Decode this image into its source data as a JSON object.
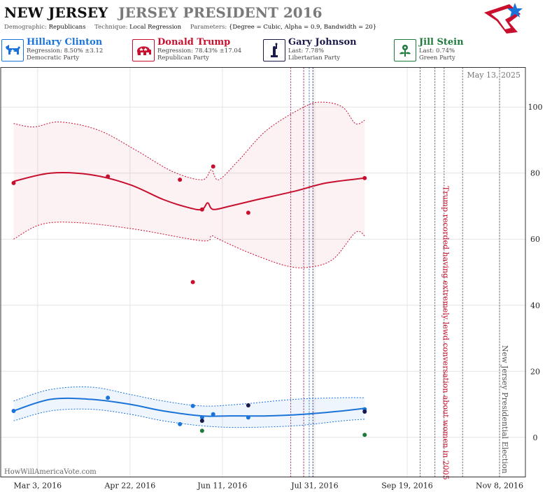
{
  "header": {
    "state": "NEW JERSEY",
    "race": "JERSEY PRESIDENT 2016"
  },
  "params": {
    "demographic_label": "Demographic:",
    "demographic": "Republicans",
    "technique_label": "Technique:",
    "technique": "Local Regression",
    "parameters_label": "Parameters:",
    "parameters": "{Degree = Cubic, Alpha = 0.9, Bandwidth = 20}"
  },
  "candidates": [
    {
      "name": "Hillary Clinton",
      "stat": "Regression: 8.50% ±3.12",
      "party": "Democratic Party",
      "color": "#1a73d9",
      "icon": "donkey-icon"
    },
    {
      "name": "Donald Trump",
      "stat": "Regression: 78.43% ±17.04",
      "party": "Republican Party",
      "color": "#c8102e",
      "icon": "elephant-icon"
    },
    {
      "name": "Gary Johnson",
      "stat": "Last: 7.78%",
      "party": "Libertarian Party",
      "color": "#1a1a4a",
      "icon": "liberty-icon"
    },
    {
      "name": "Jill Stein",
      "stat": "Last: 0.74%",
      "party": "Green Party",
      "color": "#1e7a3c",
      "icon": "flower-icon"
    }
  ],
  "date_stamp": "May 13, 2025",
  "watermark": "HowWillAmericaVote.com",
  "chart_data": {
    "type": "scatter",
    "x_ticks": [
      "Mar 3, 2016",
      "Apr 22, 2016",
      "Jun 11, 2016",
      "Jul 31, 2016",
      "Sep 19, 2016",
      "Nov 8, 2016"
    ],
    "x_range": [
      "2016-02-12",
      "2016-11-22"
    ],
    "y_ticks": [
      0,
      20,
      40,
      60,
      80,
      100
    ],
    "ylim": [
      -12,
      112
    ],
    "grid": true,
    "annotations": [
      {
        "text": "Trump recorded having extremely lewd conversation about women in 2005",
        "date": "2016-10-07",
        "color": "#c8102e"
      },
      {
        "text": "New Jersey Presidential Election",
        "date": "2016-11-08",
        "color": "#555555"
      }
    ],
    "event_lines": [
      {
        "date": "2016-07-18",
        "color": "#a0206a"
      },
      {
        "date": "2016-07-25",
        "color": "#8a1a5a"
      },
      {
        "date": "2016-07-28",
        "color": "#1a73d9"
      },
      {
        "date": "2016-07-30",
        "color": "#1a1a4a"
      },
      {
        "date": "2016-09-26",
        "color": "#555555"
      },
      {
        "date": "2016-10-04",
        "color": "#555555"
      },
      {
        "date": "2016-10-09",
        "color": "#555555"
      },
      {
        "date": "2016-10-19",
        "color": "#555555"
      },
      {
        "date": "2016-11-08",
        "color": "#555555"
      }
    ],
    "series": [
      {
        "name": "Donald Trump",
        "color": "#c8102e",
        "points": [
          {
            "date": "2016-02-19",
            "value": 77
          },
          {
            "date": "2016-04-10",
            "value": 79
          },
          {
            "date": "2016-05-19",
            "value": 78
          },
          {
            "date": "2016-05-26",
            "value": 47
          },
          {
            "date": "2016-05-31",
            "value": 69
          },
          {
            "date": "2016-06-06",
            "value": 82
          },
          {
            "date": "2016-06-25",
            "value": 68
          },
          {
            "date": "2016-08-27",
            "value": 78.5
          }
        ],
        "trend": [
          {
            "date": "2016-02-19",
            "value": 77.5
          },
          {
            "date": "2016-03-10",
            "value": 80
          },
          {
            "date": "2016-04-01",
            "value": 79.5
          },
          {
            "date": "2016-04-22",
            "value": 76.5
          },
          {
            "date": "2016-05-10",
            "value": 72
          },
          {
            "date": "2016-05-24",
            "value": 69.5
          },
          {
            "date": "2016-05-31",
            "value": 69
          },
          {
            "date": "2016-06-03",
            "value": 71
          },
          {
            "date": "2016-06-06",
            "value": 69
          },
          {
            "date": "2016-06-15",
            "value": 70
          },
          {
            "date": "2016-06-30",
            "value": 72
          },
          {
            "date": "2016-07-20",
            "value": 74.5
          },
          {
            "date": "2016-08-06",
            "value": 77
          },
          {
            "date": "2016-08-27",
            "value": 78.5
          }
        ],
        "upper": [
          {
            "date": "2016-02-19",
            "value": 95
          },
          {
            "date": "2016-03-01",
            "value": 94
          },
          {
            "date": "2016-03-15",
            "value": 95.5
          },
          {
            "date": "2016-04-05",
            "value": 93
          },
          {
            "date": "2016-04-25",
            "value": 87
          },
          {
            "date": "2016-05-15",
            "value": 80.5
          },
          {
            "date": "2016-05-31",
            "value": 78
          },
          {
            "date": "2016-06-05",
            "value": 81
          },
          {
            "date": "2016-06-09",
            "value": 78
          },
          {
            "date": "2016-06-20",
            "value": 84
          },
          {
            "date": "2016-07-05",
            "value": 93
          },
          {
            "date": "2016-07-25",
            "value": 100
          },
          {
            "date": "2016-08-04",
            "value": 101.5
          },
          {
            "date": "2016-08-15",
            "value": 100
          },
          {
            "date": "2016-08-22",
            "value": 95
          },
          {
            "date": "2016-08-27",
            "value": 96
          }
        ],
        "lower": [
          {
            "date": "2016-02-19",
            "value": 60
          },
          {
            "date": "2016-03-05",
            "value": 64.5
          },
          {
            "date": "2016-03-25",
            "value": 65
          },
          {
            "date": "2016-04-25",
            "value": 63
          },
          {
            "date": "2016-05-31",
            "value": 59.5
          },
          {
            "date": "2016-06-05",
            "value": 61
          },
          {
            "date": "2016-06-09",
            "value": 60
          },
          {
            "date": "2016-06-25",
            "value": 56
          },
          {
            "date": "2016-07-15",
            "value": 52
          },
          {
            "date": "2016-07-28",
            "value": 51.5
          },
          {
            "date": "2016-08-10",
            "value": 54
          },
          {
            "date": "2016-08-22",
            "value": 62
          },
          {
            "date": "2016-08-27",
            "value": 61
          }
        ]
      },
      {
        "name": "Hillary Clinton",
        "color": "#1a73d9",
        "points": [
          {
            "date": "2016-02-19",
            "value": 8
          },
          {
            "date": "2016-04-10",
            "value": 12
          },
          {
            "date": "2016-05-19",
            "value": 4
          },
          {
            "date": "2016-05-26",
            "value": 9.5
          },
          {
            "date": "2016-05-31",
            "value": 6
          },
          {
            "date": "2016-06-06",
            "value": 7
          },
          {
            "date": "2016-06-25",
            "value": 6
          },
          {
            "date": "2016-08-27",
            "value": 8.5
          }
        ],
        "trend": [
          {
            "date": "2016-02-19",
            "value": 8
          },
          {
            "date": "2016-03-10",
            "value": 11.5
          },
          {
            "date": "2016-04-01",
            "value": 11.5
          },
          {
            "date": "2016-04-22",
            "value": 10
          },
          {
            "date": "2016-05-10",
            "value": 8
          },
          {
            "date": "2016-05-31",
            "value": 6.5
          },
          {
            "date": "2016-06-15",
            "value": 6.5
          },
          {
            "date": "2016-07-05",
            "value": 6.5
          },
          {
            "date": "2016-07-25",
            "value": 7
          },
          {
            "date": "2016-08-15",
            "value": 8
          },
          {
            "date": "2016-08-27",
            "value": 8.8
          }
        ],
        "upper": [
          {
            "date": "2016-02-19",
            "value": 11
          },
          {
            "date": "2016-03-10",
            "value": 14.5
          },
          {
            "date": "2016-04-01",
            "value": 15.2
          },
          {
            "date": "2016-04-22",
            "value": 13
          },
          {
            "date": "2016-05-10",
            "value": 11
          },
          {
            "date": "2016-05-31",
            "value": 9.5
          },
          {
            "date": "2016-06-20",
            "value": 10
          },
          {
            "date": "2016-07-20",
            "value": 11.5
          },
          {
            "date": "2016-08-15",
            "value": 12
          },
          {
            "date": "2016-08-27",
            "value": 12
          }
        ],
        "lower": [
          {
            "date": "2016-02-19",
            "value": 5
          },
          {
            "date": "2016-03-10",
            "value": 8
          },
          {
            "date": "2016-04-01",
            "value": 8.5
          },
          {
            "date": "2016-04-22",
            "value": 7
          },
          {
            "date": "2016-05-10",
            "value": 5
          },
          {
            "date": "2016-05-31",
            "value": 3.5
          },
          {
            "date": "2016-06-20",
            "value": 3
          },
          {
            "date": "2016-07-20",
            "value": 3.5
          },
          {
            "date": "2016-08-15",
            "value": 5
          },
          {
            "date": "2016-08-27",
            "value": 5.5
          }
        ]
      },
      {
        "name": "Gary Johnson",
        "color": "#1a1a4a",
        "points": [
          {
            "date": "2016-05-31",
            "value": 5
          },
          {
            "date": "2016-06-25",
            "value": 9.7
          },
          {
            "date": "2016-08-27",
            "value": 7.78
          }
        ]
      },
      {
        "name": "Jill Stein",
        "color": "#1e7a3c",
        "points": [
          {
            "date": "2016-05-31",
            "value": 2
          },
          {
            "date": "2016-08-27",
            "value": 0.74
          }
        ]
      }
    ]
  }
}
